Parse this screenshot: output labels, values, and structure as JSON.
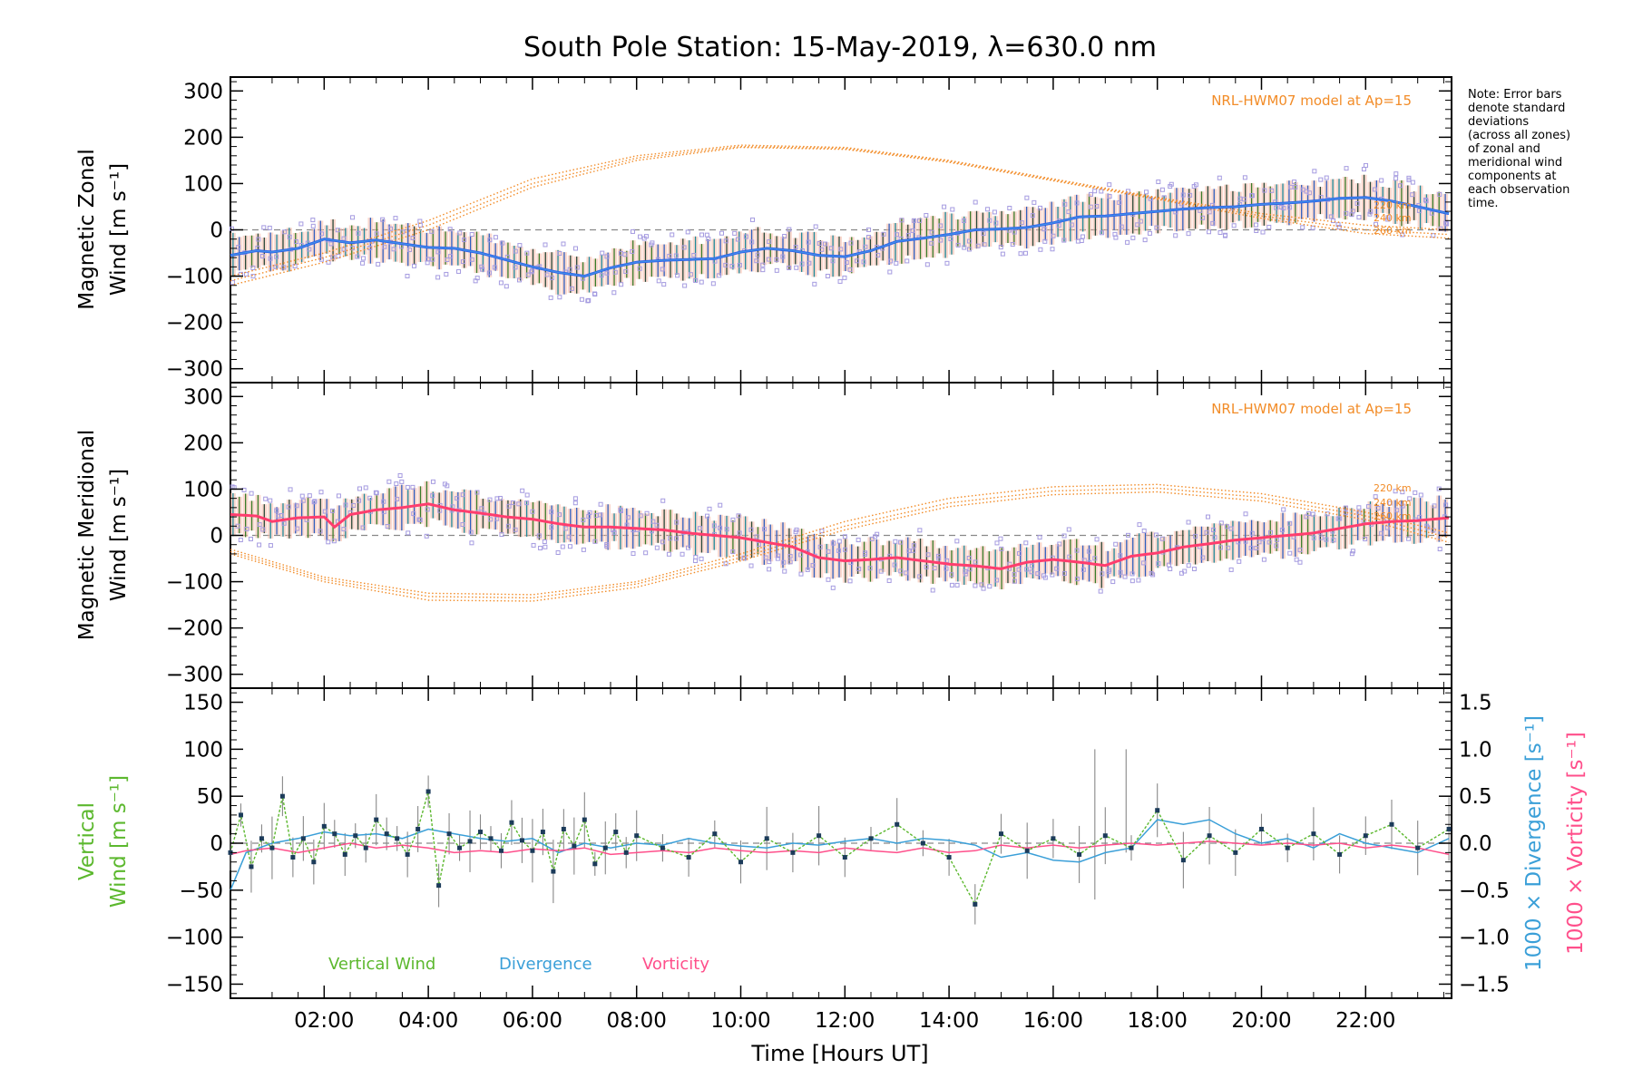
{
  "colors": {
    "axis": "#000000",
    "model": "#f28c28",
    "zonal_line": "#2f5fe8",
    "zonal_line_light": "#4aa8e8",
    "meridional_line": "#ff3d6e",
    "vertical": "#5cb82e",
    "divergence": "#3a9fd8",
    "vorticity": "#ff4f8b",
    "scatter": "#a59be0",
    "error_fill": "#f6b8a6",
    "dashed": "#888888",
    "marker": "#1c3b5a"
  },
  "chart_data": [
    {
      "type": "line",
      "panel": "zonal",
      "title": "South Pole Station: 15-May-2019, λ=630.0 nm",
      "ylabel_line1": "Magnetic Zonal",
      "ylabel_line2": "Wind [m s⁻¹]",
      "ylim": [
        -330,
        330
      ],
      "yticks": [
        300,
        200,
        100,
        0,
        -100,
        -200,
        -300
      ],
      "xlim": [
        0.2,
        23.65
      ],
      "model_label": "NRL-HWM07 model at Ap=15",
      "altitude_labels": [
        "220 km",
        "240 km",
        "260 km"
      ],
      "note": [
        "Note: Error bars",
        "denote standard",
        "deviations",
        "(across all zones)",
        "of zonal and",
        "meridional wind",
        "components at",
        "each observation",
        "time."
      ],
      "series": [
        {
          "name": "mean wind",
          "x": [
            0.2,
            0.7,
            1.0,
            1.5,
            2.0,
            2.5,
            3.0,
            3.5,
            4.0,
            4.5,
            5.0,
            5.5,
            6.0,
            6.5,
            7.0,
            7.5,
            8.0,
            8.5,
            9.0,
            9.5,
            10.0,
            10.5,
            11.0,
            11.5,
            12.0,
            12.5,
            13.0,
            13.5,
            14.0,
            14.5,
            15.0,
            15.5,
            16.0,
            16.5,
            17.0,
            17.5,
            18.0,
            18.5,
            19.0,
            19.5,
            20.0,
            20.5,
            21.0,
            21.5,
            22.0,
            22.5,
            23.0,
            23.6
          ],
          "values": [
            -55,
            -45,
            -48,
            -40,
            -20,
            -28,
            -22,
            -30,
            -38,
            -40,
            -50,
            -65,
            -80,
            -92,
            -100,
            -82,
            -70,
            -66,
            -64,
            -62,
            -48,
            -40,
            -45,
            -55,
            -58,
            -45,
            -25,
            -18,
            -10,
            0,
            2,
            5,
            15,
            28,
            30,
            35,
            40,
            45,
            48,
            50,
            55,
            58,
            62,
            68,
            70,
            62,
            50,
            35
          ]
        },
        {
          "name": "model 220 km",
          "x": [
            0.2,
            2,
            4,
            6,
            8,
            10,
            12,
            14,
            16,
            18,
            20,
            22,
            23.6
          ],
          "values": [
            -100,
            -50,
            20,
            110,
            160,
            183,
            178,
            150,
            110,
            70,
            35,
            10,
            0
          ]
        },
        {
          "name": "model 240 km",
          "x": [
            0.2,
            2,
            4,
            6,
            8,
            10,
            12,
            14,
            16,
            18,
            20,
            22,
            23.6
          ],
          "values": [
            -110,
            -60,
            10,
            100,
            155,
            180,
            176,
            148,
            108,
            68,
            30,
            0,
            -10
          ]
        },
        {
          "name": "model 260 km",
          "x": [
            0.2,
            2,
            4,
            6,
            8,
            10,
            12,
            14,
            16,
            18,
            20,
            22,
            23.6
          ],
          "values": [
            -120,
            -70,
            0,
            92,
            150,
            178,
            174,
            146,
            106,
            66,
            25,
            -8,
            -18
          ]
        }
      ]
    },
    {
      "type": "line",
      "panel": "meridional",
      "ylabel_line1": "Magnetic Meridional",
      "ylabel_line2": "Wind [m s⁻¹]",
      "ylim": [
        -330,
        330
      ],
      "yticks": [
        300,
        200,
        100,
        0,
        -100,
        -200,
        -300
      ],
      "xlim": [
        0.2,
        23.65
      ],
      "model_label": "NRL-HWM07 model at Ap=15",
      "altitude_labels": [
        "220 km",
        "240 km",
        "260 km"
      ],
      "series": [
        {
          "name": "mean wind",
          "x": [
            0.2,
            0.7,
            1.0,
            1.5,
            2.0,
            2.2,
            2.5,
            3.0,
            3.5,
            4.0,
            4.5,
            5.0,
            5.5,
            6.0,
            6.5,
            7.0,
            7.5,
            8.0,
            8.5,
            9.0,
            9.5,
            10.0,
            10.5,
            11.0,
            11.5,
            12.0,
            12.5,
            13.0,
            13.5,
            14.0,
            14.5,
            15.0,
            15.5,
            16.0,
            16.5,
            17.0,
            17.5,
            18.0,
            18.5,
            19.0,
            19.5,
            20.0,
            20.5,
            21.0,
            21.5,
            22.0,
            22.5,
            23.0,
            23.6
          ],
          "values": [
            45,
            42,
            30,
            38,
            40,
            18,
            45,
            55,
            60,
            68,
            55,
            48,
            40,
            35,
            25,
            18,
            18,
            15,
            12,
            5,
            0,
            -5,
            -15,
            -25,
            -48,
            -55,
            -52,
            -48,
            -55,
            -62,
            -66,
            -72,
            -58,
            -52,
            -58,
            -65,
            -45,
            -38,
            -25,
            -18,
            -10,
            -5,
            0,
            5,
            15,
            25,
            30,
            32,
            38
          ]
        },
        {
          "name": "model 220 km",
          "x": [
            0.2,
            2,
            4,
            6,
            8,
            10,
            12,
            14,
            16,
            18,
            20,
            22,
            23.6
          ],
          "values": [
            -30,
            -90,
            -125,
            -128,
            -100,
            -40,
            30,
            80,
            105,
            110,
            90,
            50,
            5
          ]
        },
        {
          "name": "model 240 km",
          "x": [
            0.2,
            2,
            4,
            6,
            8,
            10,
            12,
            14,
            16,
            18,
            20,
            22,
            23.6
          ],
          "values": [
            -35,
            -95,
            -132,
            -135,
            -105,
            -48,
            20,
            70,
            96,
            102,
            82,
            42,
            -5
          ]
        },
        {
          "name": "model 260 km",
          "x": [
            0.2,
            2,
            4,
            6,
            8,
            10,
            12,
            14,
            16,
            18,
            20,
            22,
            23.6
          ],
          "values": [
            -40,
            -100,
            -140,
            -142,
            -112,
            -55,
            12,
            62,
            88,
            94,
            74,
            34,
            -15
          ]
        }
      ]
    },
    {
      "type": "line",
      "panel": "vertical",
      "xlabel": "Time [Hours UT]",
      "xticks": [
        "02:00",
        "04:00",
        "06:00",
        "08:00",
        "10:00",
        "12:00",
        "14:00",
        "16:00",
        "18:00",
        "20:00",
        "22:00"
      ],
      "xtick_values": [
        2,
        4,
        6,
        8,
        10,
        12,
        14,
        16,
        18,
        20,
        22
      ],
      "xlim": [
        0.2,
        23.65
      ],
      "ylabel_line1": "Vertical",
      "ylabel_line2": "Wind [m s⁻¹]",
      "ylim": [
        -165,
        165
      ],
      "yticks": [
        150,
        100,
        50,
        0,
        -50,
        -100,
        -150
      ],
      "y2lim": [
        -1.65,
        1.65
      ],
      "y2ticks": [
        1.5,
        1.0,
        0.5,
        0.0,
        -0.5,
        -1.0,
        -1.5
      ],
      "y2label_div": "1000 × Divergence [s⁻¹]",
      "y2label_vort": "1000 × Vorticity [s⁻¹]",
      "legend": [
        "Vertical Wind",
        "Divergence",
        "Vorticity"
      ],
      "series": [
        {
          "name": "Vertical Wind",
          "x": [
            0.2,
            0.4,
            0.6,
            0.8,
            1.0,
            1.2,
            1.4,
            1.6,
            1.8,
            2.0,
            2.2,
            2.4,
            2.6,
            2.8,
            3.0,
            3.2,
            3.4,
            3.6,
            3.8,
            4.0,
            4.2,
            4.4,
            4.6,
            4.8,
            5.0,
            5.2,
            5.4,
            5.6,
            5.8,
            6.0,
            6.2,
            6.4,
            6.6,
            6.8,
            7.0,
            7.2,
            7.4,
            7.6,
            7.8,
            8.0,
            8.5,
            9.0,
            9.5,
            10.0,
            10.5,
            11.0,
            11.5,
            12.0,
            12.5,
            13.0,
            13.5,
            14.0,
            14.5,
            15.0,
            15.5,
            16.0,
            16.5,
            17.0,
            17.5,
            18.0,
            18.5,
            19.0,
            19.5,
            20.0,
            20.5,
            21.0,
            21.5,
            22.0,
            22.5,
            23.0,
            23.6
          ],
          "values": [
            -10,
            30,
            -25,
            5,
            -5,
            50,
            -15,
            5,
            -20,
            18,
            10,
            -12,
            8,
            -5,
            25,
            10,
            5,
            -12,
            15,
            55,
            -45,
            10,
            -5,
            2,
            12,
            5,
            -8,
            22,
            3,
            -8,
            12,
            -30,
            15,
            -3,
            25,
            -22,
            -5,
            12,
            -10,
            8,
            -5,
            -15,
            10,
            -20,
            5,
            -10,
            8,
            -15,
            5,
            20,
            0,
            -15,
            -65,
            10,
            -8,
            5,
            -12,
            8,
            -5,
            35,
            -18,
            8,
            -10,
            15,
            -5,
            10,
            -12,
            8,
            20,
            -5,
            15
          ]
        },
        {
          "name": "Divergence",
          "x": [
            0.2,
            0.5,
            1.0,
            1.5,
            2.0,
            2.5,
            3.0,
            3.5,
            4.0,
            4.5,
            5.0,
            5.5,
            6.0,
            6.5,
            7.0,
            7.5,
            8.0,
            8.5,
            9.0,
            9.5,
            10.0,
            10.5,
            11.0,
            11.5,
            12.0,
            12.5,
            13.0,
            13.5,
            14.0,
            14.5,
            15.0,
            15.5,
            16.0,
            16.5,
            17.0,
            17.5,
            18.0,
            18.5,
            19.0,
            19.5,
            20.0,
            20.5,
            21.0,
            21.5,
            22.0,
            22.5,
            23.0,
            23.6
          ],
          "values": [
            -0.5,
            -0.1,
            0.0,
            0.05,
            0.12,
            0.08,
            0.1,
            0.05,
            0.15,
            0.1,
            0.05,
            0.02,
            0.05,
            -0.1,
            0.0,
            -0.05,
            0.0,
            -0.02,
            0.05,
            0.0,
            -0.03,
            -0.05,
            0.0,
            -0.02,
            0.02,
            0.05,
            0.0,
            0.05,
            0.03,
            -0.02,
            -0.15,
            -0.1,
            -0.18,
            -0.2,
            -0.1,
            -0.05,
            0.25,
            0.2,
            0.25,
            0.1,
            0.0,
            0.05,
            -0.05,
            0.1,
            0.0,
            -0.05,
            -0.1,
            0.05
          ]
        },
        {
          "name": "Vorticity",
          "x": [
            0.2,
            0.5,
            1.0,
            1.5,
            2.0,
            2.5,
            3.0,
            3.5,
            4.0,
            4.5,
            5.0,
            5.5,
            6.0,
            6.5,
            7.0,
            7.5,
            8.0,
            8.5,
            9.0,
            9.5,
            10.0,
            10.5,
            11.0,
            11.5,
            12.0,
            12.5,
            13.0,
            13.5,
            14.0,
            14.5,
            15.0,
            15.5,
            16.0,
            16.5,
            17.0,
            17.5,
            18.0,
            18.5,
            19.0,
            19.5,
            20.0,
            20.5,
            21.0,
            21.5,
            22.0,
            22.5,
            23.0,
            23.6
          ],
          "values": [
            -0.12,
            -0.08,
            -0.05,
            -0.1,
            -0.05,
            0.0,
            -0.05,
            -0.02,
            -0.05,
            -0.1,
            -0.08,
            -0.1,
            -0.06,
            -0.08,
            -0.05,
            -0.12,
            -0.1,
            -0.08,
            -0.1,
            -0.05,
            -0.08,
            -0.1,
            -0.08,
            -0.1,
            -0.05,
            -0.08,
            -0.1,
            -0.05,
            -0.1,
            -0.08,
            -0.02,
            -0.05,
            -0.02,
            -0.05,
            -0.02,
            0.0,
            -0.02,
            0.0,
            0.02,
            0.0,
            -0.02,
            0.0,
            -0.02,
            0.0,
            -0.05,
            -0.02,
            -0.05,
            -0.12
          ]
        }
      ]
    }
  ]
}
